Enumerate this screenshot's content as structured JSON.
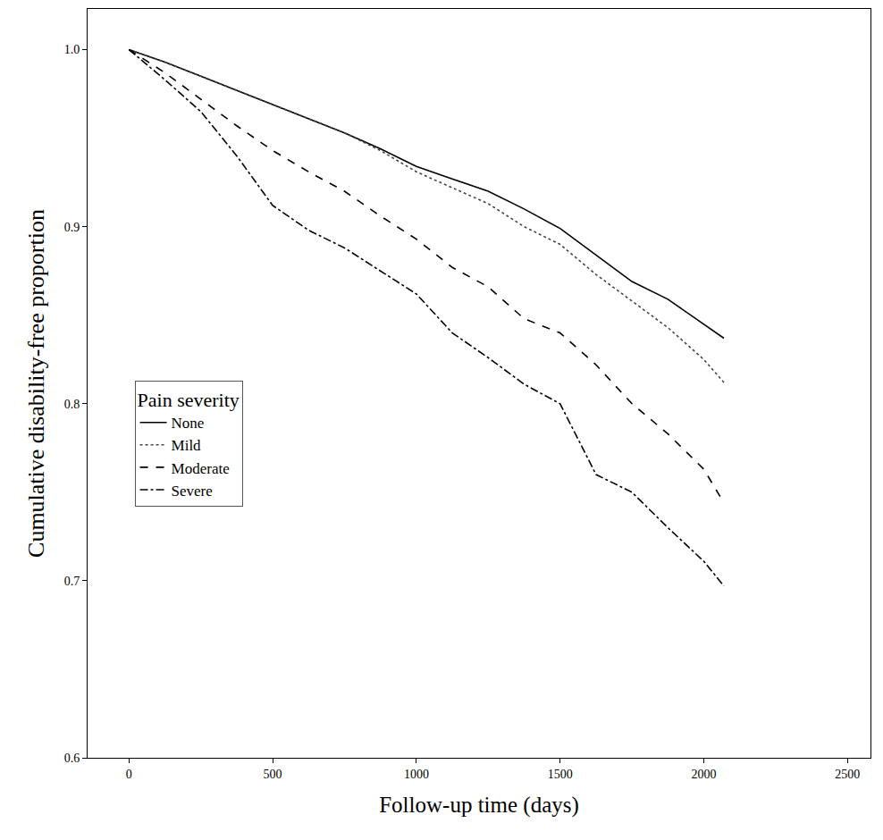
{
  "chart_data": {
    "type": "line",
    "xlabel": "Follow-up time (days)",
    "ylabel": "Cumulative disability-free proportion",
    "legend_title": "Pain severity",
    "x": [
      0,
      125,
      250,
      375,
      500,
      625,
      750,
      875,
      1000,
      1125,
      1250,
      1375,
      1500,
      1625,
      1750,
      1875,
      2000,
      2070
    ],
    "series": [
      {
        "name": "None",
        "color": "#000000",
        "line_style": "solid",
        "values": [
          1.0,
          0.993,
          0.985,
          0.977,
          0.969,
          0.961,
          0.953,
          0.944,
          0.934,
          0.927,
          0.92,
          0.91,
          0.899,
          0.884,
          0.869,
          0.859,
          0.845,
          0.837
        ]
      },
      {
        "name": "Mild",
        "color": "#444444",
        "line_style": "dot",
        "values": [
          1.0,
          0.993,
          0.985,
          0.977,
          0.969,
          0.961,
          0.953,
          0.943,
          0.931,
          0.922,
          0.913,
          0.9,
          0.89,
          0.873,
          0.858,
          0.843,
          0.825,
          0.812
        ]
      },
      {
        "name": "Moderate",
        "color": "#000000",
        "line_style": "dash",
        "values": [
          1.0,
          0.987,
          0.972,
          0.957,
          0.943,
          0.931,
          0.92,
          0.906,
          0.893,
          0.877,
          0.866,
          0.848,
          0.84,
          0.822,
          0.8,
          0.783,
          0.763,
          0.744
        ]
      },
      {
        "name": "Severe",
        "color": "#000000",
        "line_style": "dashdot",
        "values": [
          1.0,
          0.983,
          0.965,
          0.94,
          0.912,
          0.898,
          0.888,
          0.875,
          0.862,
          0.84,
          0.826,
          0.811,
          0.8,
          0.76,
          0.75,
          0.73,
          0.711,
          0.697
        ]
      }
    ],
    "xlim": [
      -144,
      2580
    ],
    "xticks": [
      0,
      500,
      1000,
      1500,
      2000,
      2500
    ],
    "ylim": [
      0.6,
      1.023
    ],
    "yticks": [
      0.6,
      0.7,
      0.8,
      0.9,
      {
        "value": 1,
        "label": "1.0"
      }
    ],
    "grid": false,
    "legend": "left"
  }
}
